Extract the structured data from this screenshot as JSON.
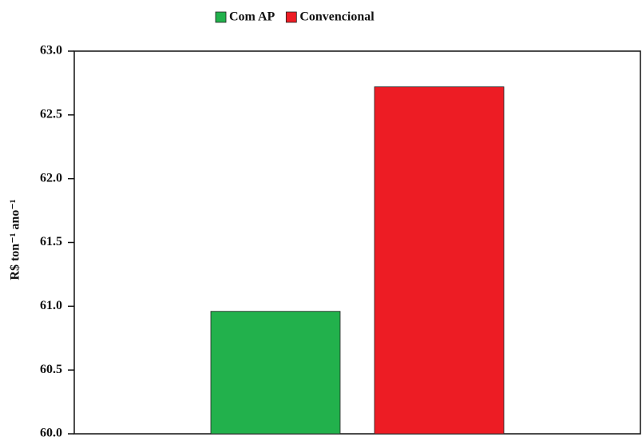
{
  "chart_data": {
    "type": "bar",
    "ylabel": "R$ ton⁻¹ ano⁻¹",
    "categories": [
      null
    ],
    "series": [
      {
        "name": "Com AP",
        "color": "#22b14c",
        "values": [
          60.96
        ]
      },
      {
        "name": "Convencional",
        "color": "#ed1c24",
        "values": [
          62.72
        ]
      }
    ],
    "ylim": [
      60,
      63
    ],
    "yticks": [
      {
        "value": 60,
        "label": "60.0"
      },
      60.5,
      {
        "value": 61,
        "label": "61.0"
      },
      61.5,
      {
        "value": 62,
        "label": "62.0"
      },
      62.5,
      {
        "value": 63,
        "label": "63.0"
      }
    ],
    "legend": "top"
  }
}
